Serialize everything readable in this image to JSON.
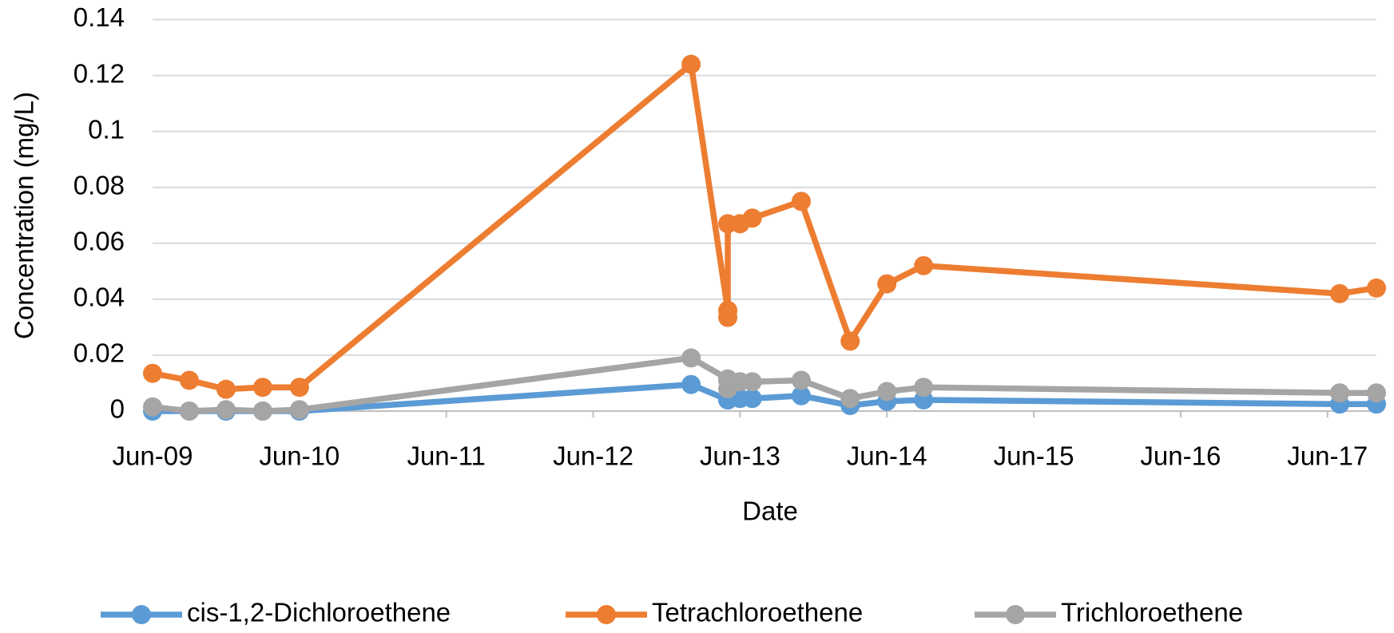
{
  "chart_data": {
    "type": "line",
    "xlabel": "Date",
    "ylabel": "Concentration (mg/L)",
    "x": [
      "2009-06",
      "2009-09",
      "2009-12",
      "2010-03",
      "2010-06",
      "2013-02",
      "2013-05",
      "2013-05",
      "2013-05",
      "2013-06",
      "2013-07",
      "2013-11",
      "2014-03",
      "2014-06",
      "2014-09",
      "2017-07",
      "2017-10"
    ],
    "series": [
      {
        "name": "cis-1,2-Dichloroethene",
        "color": "#5b9bd5",
        "values": [
          0,
          0,
          0,
          0,
          0,
          0.0095,
          0.004,
          0.004,
          0.004,
          0.0045,
          0.0045,
          0.0055,
          0.002,
          0.0035,
          0.004,
          0.0025,
          0.0025
        ]
      },
      {
        "name": "Tetrachloroethene",
        "color": "#ed7d31",
        "values": [
          0.0135,
          0.011,
          0.0078,
          0.0085,
          0.0085,
          0.124,
          0.036,
          0.0335,
          0.067,
          0.067,
          0.069,
          0.075,
          0.025,
          0.0455,
          0.052,
          0.042,
          0.044
        ]
      },
      {
        "name": "Trichloroethene",
        "color": "#a5a5a5",
        "values": [
          0.0015,
          0,
          0.0005,
          0,
          0.0005,
          0.019,
          0.0115,
          0.008,
          0.011,
          0.0105,
          0.0105,
          0.011,
          0.0045,
          0.007,
          0.0085,
          0.0065,
          0.0065
        ]
      }
    ],
    "xlim": [
      "2009-06",
      "2017-10"
    ],
    "xticks": [
      {
        "value": "2009-06",
        "label": "Jun-09"
      },
      {
        "value": "2010-06",
        "label": "Jun-10"
      },
      {
        "value": "2011-06",
        "label": "Jun-11"
      },
      {
        "value": "2012-06",
        "label": "Jun-12"
      },
      {
        "value": "2013-06",
        "label": "Jun-13"
      },
      {
        "value": "2014-06",
        "label": "Jun-14"
      },
      {
        "value": "2015-06",
        "label": "Jun-15"
      },
      {
        "value": "2016-06",
        "label": "Jun-16"
      },
      {
        "value": "2017-06",
        "label": "Jun-17"
      }
    ],
    "ylim": [
      0,
      0.14
    ],
    "yticks": [
      0,
      0.02,
      0.04,
      0.06,
      0.08,
      0.1,
      0.12,
      0.14
    ],
    "grid": true,
    "legend": "bottom"
  }
}
